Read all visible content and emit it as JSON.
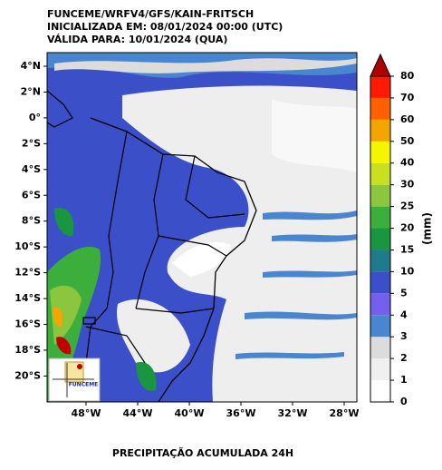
{
  "header": {
    "lines": [
      "FUNCEME/WRFV4/GFS/KAIN-FRITSCH",
      "INICIALIZADA EM: 08/01/2024 00:00 (UTC)",
      "VÁLIDA PARA: 10/01/2024 (QUA)"
    ]
  },
  "map": {
    "lat_labels": [
      "4°N",
      "2°N",
      "0°",
      "2°S",
      "4°S",
      "6°S",
      "8°S",
      "10°S",
      "12°S",
      "14°S",
      "16°S",
      "18°S",
      "20°S"
    ],
    "lon_labels": [
      "48°W",
      "44°W",
      "40°W",
      "36°W",
      "32°W",
      "28°W"
    ],
    "logo": "FUNCEME"
  },
  "colorbar": {
    "ticks": [
      "0",
      "1",
      "2",
      "3",
      "4",
      "5",
      "10",
      "15",
      "20",
      "25",
      "30",
      "40",
      "50",
      "60",
      "70",
      "80"
    ],
    "colors": [
      "#ffffff",
      "#f0f0f0",
      "#dcdcdc",
      "#4a86d0",
      "#7560ee",
      "#3b4fc8",
      "#1f7a8c",
      "#1a9641",
      "#3cae3c",
      "#8cc63f",
      "#c8e020",
      "#f5f500",
      "#f5a500",
      "#ff6000",
      "#ff1a00"
    ],
    "over_color": "#b00000",
    "unit": "(mm)"
  },
  "caption": "PRECIPITAÇÃO ACUMULADA 24H"
}
